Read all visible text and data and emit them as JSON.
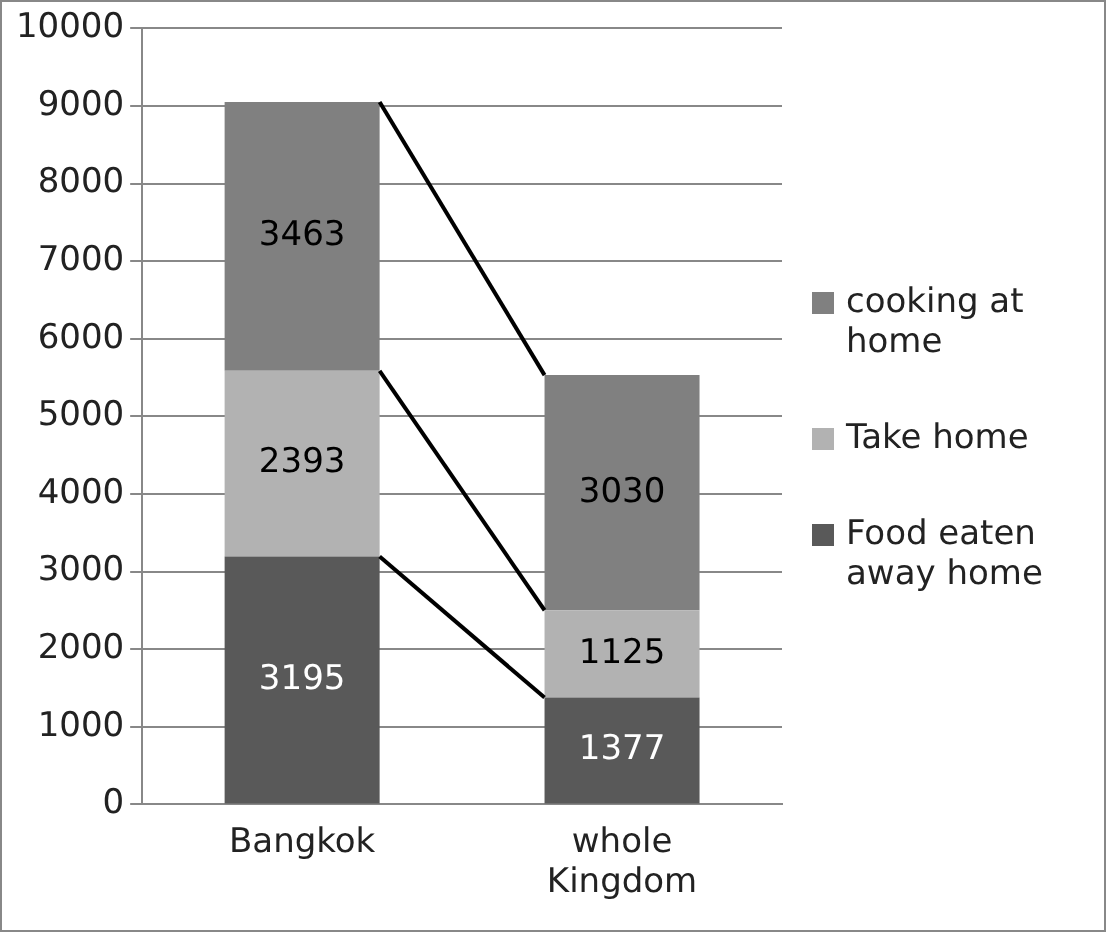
{
  "chart_data": {
    "type": "bar",
    "stacked": true,
    "categories": [
      "Bangkok",
      "whole Kingdom"
    ],
    "series": [
      {
        "name": "Food eaten away home",
        "color": "#595959",
        "values": [
          3195,
          1377
        ]
      },
      {
        "name": "Take home",
        "color": "#b2b2b2",
        "values": [
          2393,
          1125
        ]
      },
      {
        "name": "cooking at home",
        "color": "#808080",
        "values": [
          3463,
          3030
        ]
      }
    ],
    "ylim": [
      0,
      10000
    ],
    "yticks": [
      0,
      1000,
      2000,
      3000,
      4000,
      5000,
      6000,
      7000,
      8000,
      9000,
      10000
    ],
    "grid": "y",
    "legend": "right",
    "data_labels": true
  }
}
